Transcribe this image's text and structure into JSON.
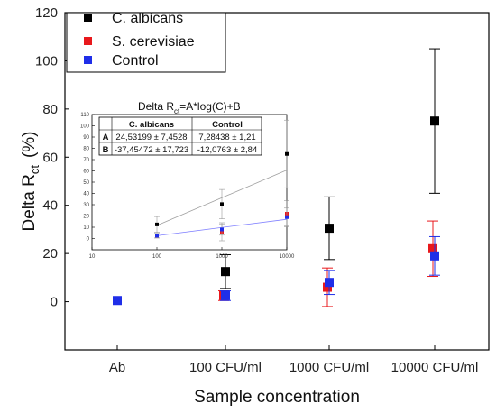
{
  "chart_data": [
    {
      "type": "scatter",
      "title": "",
      "xlabel": "Sample concentration",
      "ylabel": "Delta R",
      "ylabel_sub": "ct",
      "ylabel_unit": "(%)",
      "categories": [
        "Ab",
        "100 CFU/ml",
        "1000 CFU/ml",
        "10000 CFU/ml"
      ],
      "ylim": [
        -20,
        120
      ],
      "yticks": [
        0,
        20,
        40,
        60,
        80,
        100,
        120
      ],
      "legend_position": "top-left",
      "series": [
        {
          "name": "C. albicans",
          "color": "#000000",
          "points": [
            {
              "x": "100 CFU/ml",
              "y": 12.5,
              "err": 7
            },
            {
              "x": "1000 CFU/ml",
              "y": 30.5,
              "err": 13
            },
            {
              "x": "10000 CFU/ml",
              "y": 75,
              "err": 30
            }
          ]
        },
        {
          "name": "S. cerevisiae",
          "color": "#e8181c",
          "points": [
            {
              "x": "100 CFU/ml",
              "y": 2.5,
              "err": 2
            },
            {
              "x": "1000 CFU/ml",
              "y": 6,
              "err": 8
            },
            {
              "x": "10000 CFU/ml",
              "y": 22,
              "err": 11.5
            }
          ]
        },
        {
          "name": "Control",
          "color": "#1f2ee8",
          "points": [
            {
              "x": "Ab",
              "y": 0.5,
              "err": 0
            },
            {
              "x": "100 CFU/ml",
              "y": 2.5,
              "err": 2
            },
            {
              "x": "1000 CFU/ml",
              "y": 8,
              "err": 5
            },
            {
              "x": "10000 CFU/ml",
              "y": 19,
              "err": 8
            }
          ]
        }
      ]
    },
    {
      "type": "scatter",
      "title": "Delta R",
      "title_sub": "ct",
      "title_rest": "=A*log(C)+B",
      "x_scale": "log",
      "xlim": [
        10,
        10000
      ],
      "xticks": [
        "10",
        "100",
        "1000",
        "10000"
      ],
      "ylim": [
        -10,
        110
      ],
      "yticks": [
        "0",
        "10",
        "20",
        "30",
        "40",
        "50",
        "60",
        "70",
        "80",
        "90",
        "100",
        "110"
      ],
      "series": [
        {
          "name": "C. albicans",
          "color": "#000000",
          "points": [
            {
              "x": 100,
              "y": 12.5,
              "err": 7
            },
            {
              "x": 1000,
              "y": 30.5,
              "err": 13
            },
            {
              "x": 10000,
              "y": 75,
              "err": 30
            }
          ],
          "fit": {
            "A": 24.53199,
            "B": -37.45472,
            "color": "#a0a0a0"
          }
        },
        {
          "name": "S. cerevisiae",
          "color": "#e8181c",
          "points": [
            {
              "x": 100,
              "y": 2.5,
              "err": 2
            },
            {
              "x": 1000,
              "y": 6,
              "err": 8
            },
            {
              "x": 10000,
              "y": 22,
              "err": 11.5
            }
          ]
        },
        {
          "name": "Control",
          "color": "#1f2ee8",
          "points": [
            {
              "x": 100,
              "y": 2.5,
              "err": 2
            },
            {
              "x": 1000,
              "y": 8,
              "err": 5
            },
            {
              "x": 10000,
              "y": 19,
              "err": 8
            }
          ],
          "fit": {
            "A": 7.28438,
            "B": -12.0763,
            "color": "#8080ff"
          }
        }
      ],
      "table": {
        "headers": [
          "",
          "C. albicans",
          "Control"
        ],
        "rows": [
          [
            "A",
            "24,53199 ± 7,4528",
            "7,28438 ± 1,21"
          ],
          [
            "B",
            "-37,45472 ± 17,723",
            "-12,0763 ± 2,84"
          ]
        ]
      }
    }
  ]
}
